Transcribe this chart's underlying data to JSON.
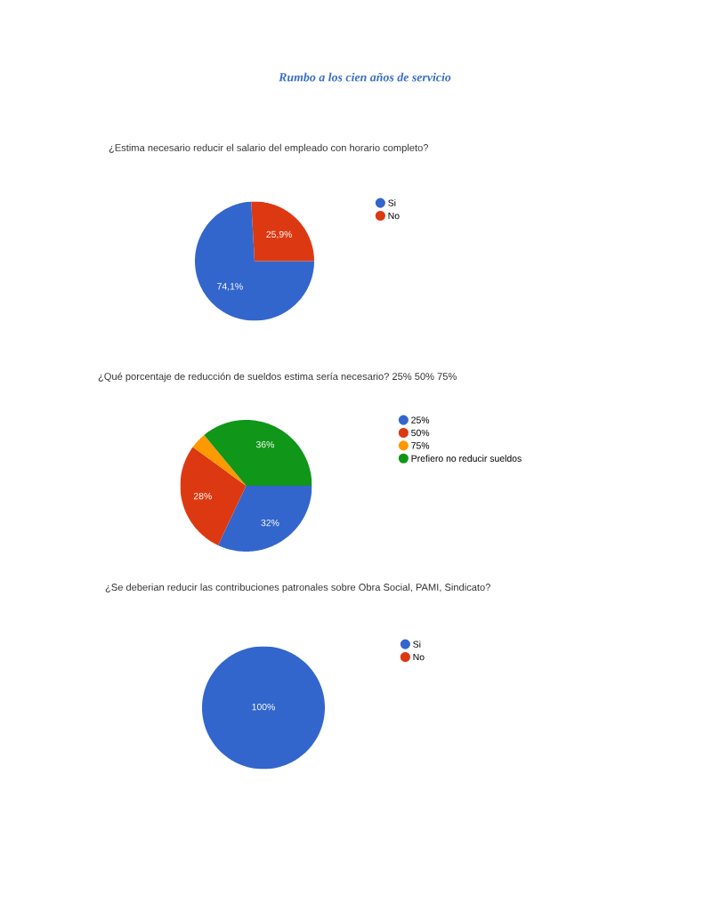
{
  "chart_data": [
    {
      "type": "pie",
      "title": "¿Estima necesario reducir el salario del empleado con horario completo?",
      "annotations": [
        "Rumbo a los cien años de servicio"
      ],
      "categories": [
        "Si",
        "No"
      ],
      "values": [
        74.1,
        25.9
      ],
      "colors": [
        "#3366cc",
        "#dc3912"
      ],
      "value_labels": [
        "74,1%",
        "25,9%"
      ],
      "legend": "right",
      "marker": "circle"
    },
    {
      "type": "pie",
      "title": "¿Qué porcentaje de reducción de sueldos estima sería necesario? 25% 50% 75%",
      "categories": [
        "25%",
        "50%",
        "75%",
        "Prefiero no reducir sueldos"
      ],
      "values": [
        32,
        28,
        4,
        36
      ],
      "colors": [
        "#3366cc",
        "#dc3912",
        "#ff9900",
        "#109618"
      ],
      "value_labels": [
        "32%",
        "28%",
        null,
        "36%"
      ],
      "legend": "right",
      "marker": "circle"
    },
    {
      "type": "pie",
      "title": "¿Se deberian reducir las contribuciones patronales sobre Obra Social, PAMI, Sindicato?",
      "categories": [
        "Si",
        "No"
      ],
      "values": [
        100,
        0
      ],
      "colors": [
        "#3366cc",
        "#dc3912"
      ],
      "value_labels": [
        "100%",
        null
      ],
      "legend": "right",
      "marker": "circle"
    }
  ]
}
